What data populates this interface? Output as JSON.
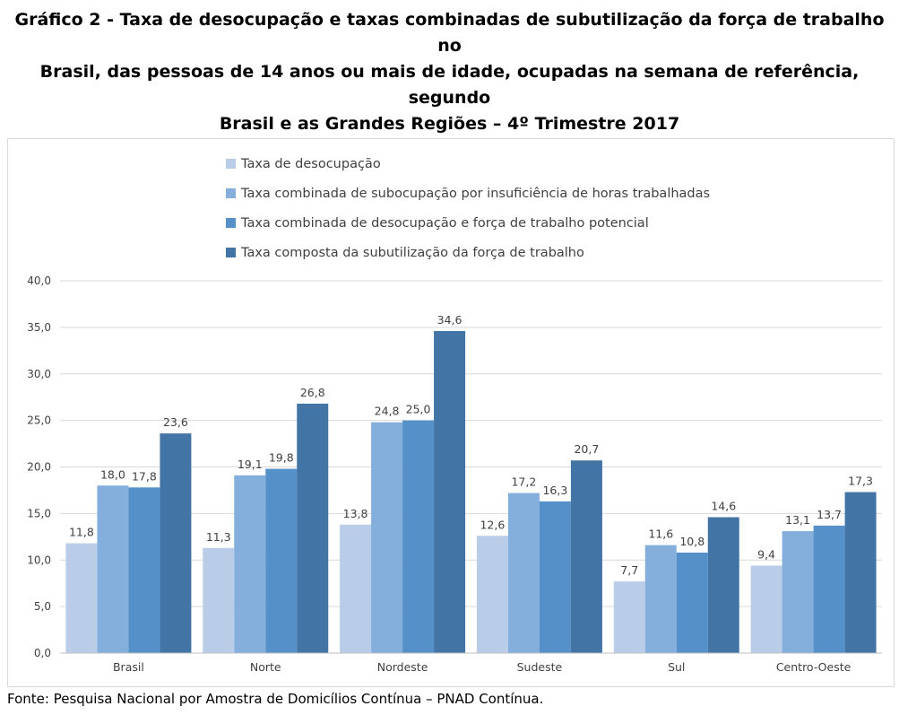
{
  "title_lines": [
    "Gráfico 2 - Taxa de desocupação e taxas combinadas de subutilização da força de trabalho no",
    "Brasil, das pessoas de 14 anos ou mais de idade, ocupadas na semana de referência, segundo",
    "Brasil e as Grandes Regiões – 4º Trimestre 2017"
  ],
  "source": "Fonte: Pesquisa Nacional por Amostra de Domicílios Contínua – PNAD Contínua.",
  "chart_data": {
    "type": "bar",
    "title": "Gráfico 2 - Taxa de desocupação e taxas combinadas de subutilização da força de trabalho no Brasil, das pessoas de 14 anos ou mais de idade, ocupadas na semana de referência, segundo Brasil e as Grandes Regiões – 4º Trimestre 2017",
    "categories": [
      "Brasil",
      "Norte",
      "Nordeste",
      "Sudeste",
      "Sul",
      "Centro-Oeste"
    ],
    "series": [
      {
        "name": "Taxa de desocupação",
        "color": "#b9cde8",
        "values": [
          11.8,
          11.3,
          13.8,
          12.6,
          7.7,
          9.4
        ]
      },
      {
        "name": "Taxa combinada de subocupação por insuficiência de horas trabalhadas",
        "color": "#84aedc",
        "values": [
          18.0,
          19.1,
          24.8,
          17.2,
          11.6,
          13.1
        ]
      },
      {
        "name": "Taxa combinada de desocupação e força de trabalho potencial",
        "color": "#5590c9",
        "values": [
          17.8,
          19.8,
          25.0,
          16.3,
          10.8,
          13.7
        ]
      },
      {
        "name": "Taxa composta da subutilização da força de trabalho",
        "color": "#4274a6",
        "values": [
          23.6,
          26.8,
          34.6,
          20.7,
          14.6,
          17.3
        ]
      }
    ],
    "ylim": [
      0,
      40
    ],
    "yticks": [
      "0,0",
      "5,0",
      "10,0",
      "15,0",
      "20,0",
      "25,0",
      "30,0",
      "35,0",
      "40,0"
    ],
    "grid": true,
    "legend_position": "top-left",
    "decimal_separator": ","
  }
}
